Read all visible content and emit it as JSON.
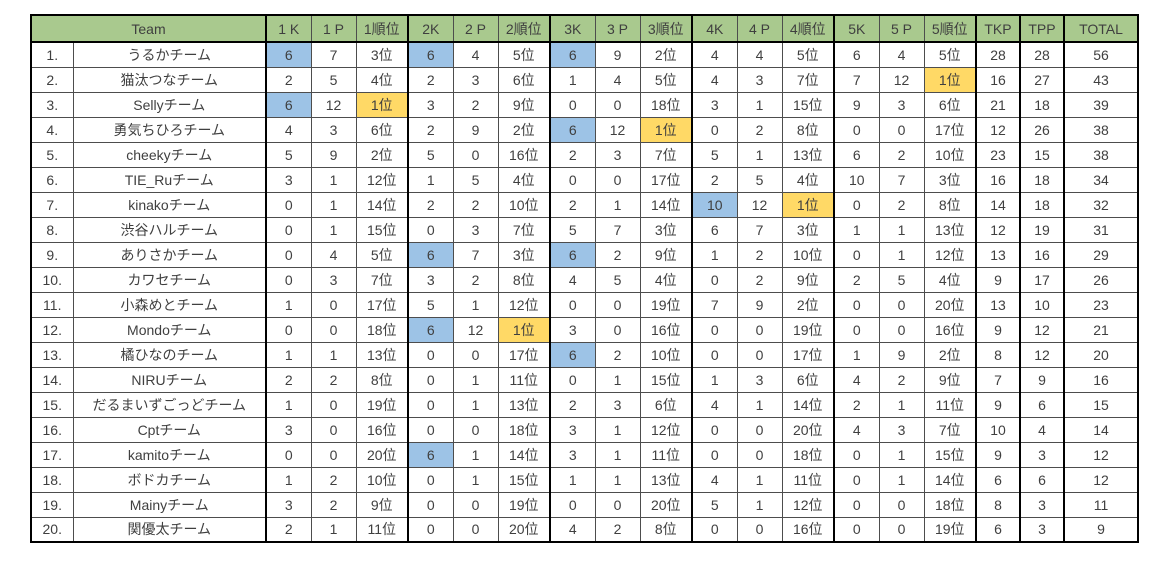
{
  "colors": {
    "header_bg": "#a9c98e",
    "kill_highlight_blue": "#9dc3e6",
    "first_place_yellow": "#ffd966"
  },
  "table": {
    "team_header": "Team",
    "stat_headers": [
      "1 K",
      "1 P",
      "1順位",
      "2K",
      "2 P",
      "2順位",
      "3K",
      "3 P",
      "3順位",
      "4K",
      "4 P",
      "4順位",
      "5K",
      "5 P",
      "5順位",
      "TKP",
      "TPP",
      "TOTAL"
    ],
    "rows": [
      {
        "rank": "1.",
        "team": "うるかチーム",
        "cells": [
          "6",
          "7",
          "3位",
          "6",
          "4",
          "5位",
          "6",
          "9",
          "2位",
          "4",
          "4",
          "5位",
          "6",
          "4",
          "5位",
          "28",
          "28",
          "56"
        ],
        "hl": {
          "0": "blue",
          "3": "blue",
          "6": "blue"
        }
      },
      {
        "rank": "2.",
        "team": "猫汰つなチーム",
        "cells": [
          "2",
          "5",
          "4位",
          "2",
          "3",
          "6位",
          "1",
          "4",
          "5位",
          "4",
          "3",
          "7位",
          "7",
          "12",
          "1位",
          "16",
          "27",
          "43"
        ],
        "hl": {
          "14": "yellow"
        }
      },
      {
        "rank": "3.",
        "team": "Sellyチーム",
        "cells": [
          "6",
          "12",
          "1位",
          "3",
          "2",
          "9位",
          "0",
          "0",
          "18位",
          "3",
          "1",
          "15位",
          "9",
          "3",
          "6位",
          "21",
          "18",
          "39"
        ],
        "hl": {
          "0": "blue",
          "2": "yellow"
        }
      },
      {
        "rank": "4.",
        "team": "勇気ちひろチーム",
        "cells": [
          "4",
          "3",
          "6位",
          "2",
          "9",
          "2位",
          "6",
          "12",
          "1位",
          "0",
          "2",
          "8位",
          "0",
          "0",
          "17位",
          "12",
          "26",
          "38"
        ],
        "hl": {
          "6": "blue",
          "8": "yellow"
        }
      },
      {
        "rank": "5.",
        "team": "cheekyチーム",
        "cells": [
          "5",
          "9",
          "2位",
          "5",
          "0",
          "16位",
          "2",
          "3",
          "7位",
          "5",
          "1",
          "13位",
          "6",
          "2",
          "10位",
          "23",
          "15",
          "38"
        ],
        "hl": {}
      },
      {
        "rank": "6.",
        "team": "TIE_Ruチーム",
        "cells": [
          "3",
          "1",
          "12位",
          "1",
          "5",
          "4位",
          "0",
          "0",
          "17位",
          "2",
          "5",
          "4位",
          "10",
          "7",
          "3位",
          "16",
          "18",
          "34"
        ],
        "hl": {}
      },
      {
        "rank": "7.",
        "team": "kinakoチーム",
        "cells": [
          "0",
          "1",
          "14位",
          "2",
          "2",
          "10位",
          "2",
          "1",
          "14位",
          "10",
          "12",
          "1位",
          "0",
          "2",
          "8位",
          "14",
          "18",
          "32"
        ],
        "hl": {
          "9": "blue",
          "11": "yellow"
        }
      },
      {
        "rank": "8.",
        "team": "渋谷ハルチーム",
        "cells": [
          "0",
          "1",
          "15位",
          "0",
          "3",
          "7位",
          "5",
          "7",
          "3位",
          "6",
          "7",
          "3位",
          "1",
          "1",
          "13位",
          "12",
          "19",
          "31"
        ],
        "hl": {}
      },
      {
        "rank": "9.",
        "team": "ありさかチーム",
        "cells": [
          "0",
          "4",
          "5位",
          "6",
          "7",
          "3位",
          "6",
          "2",
          "9位",
          "1",
          "2",
          "10位",
          "0",
          "1",
          "12位",
          "13",
          "16",
          "29"
        ],
        "hl": {
          "3": "blue",
          "6": "blue"
        }
      },
      {
        "rank": "10.",
        "team": "カワセチーム",
        "cells": [
          "0",
          "3",
          "7位",
          "3",
          "2",
          "8位",
          "4",
          "5",
          "4位",
          "0",
          "2",
          "9位",
          "2",
          "5",
          "4位",
          "9",
          "17",
          "26"
        ],
        "hl": {}
      },
      {
        "rank": "11.",
        "team": "小森めとチーム",
        "cells": [
          "1",
          "0",
          "17位",
          "5",
          "1",
          "12位",
          "0",
          "0",
          "19位",
          "7",
          "9",
          "2位",
          "0",
          "0",
          "20位",
          "13",
          "10",
          "23"
        ],
        "hl": {}
      },
      {
        "rank": "12.",
        "team": "Mondoチーム",
        "cells": [
          "0",
          "0",
          "18位",
          "6",
          "12",
          "1位",
          "3",
          "0",
          "16位",
          "0",
          "0",
          "19位",
          "0",
          "0",
          "16位",
          "9",
          "12",
          "21"
        ],
        "hl": {
          "3": "blue",
          "5": "yellow"
        }
      },
      {
        "rank": "13.",
        "team": "橘ひなのチーム",
        "cells": [
          "1",
          "1",
          "13位",
          "0",
          "0",
          "17位",
          "6",
          "2",
          "10位",
          "0",
          "0",
          "17位",
          "1",
          "9",
          "2位",
          "8",
          "12",
          "20"
        ],
        "hl": {
          "6": "blue"
        }
      },
      {
        "rank": "14.",
        "team": "NIRUチーム",
        "cells": [
          "2",
          "2",
          "8位",
          "0",
          "1",
          "11位",
          "0",
          "1",
          "15位",
          "1",
          "3",
          "6位",
          "4",
          "2",
          "9位",
          "7",
          "9",
          "16"
        ],
        "hl": {}
      },
      {
        "rank": "15.",
        "team": "だるまいずごっどチーム",
        "cells": [
          "1",
          "0",
          "19位",
          "0",
          "1",
          "13位",
          "2",
          "3",
          "6位",
          "4",
          "1",
          "14位",
          "2",
          "1",
          "11位",
          "9",
          "6",
          "15"
        ],
        "hl": {}
      },
      {
        "rank": "16.",
        "team": "Cptチーム",
        "cells": [
          "3",
          "0",
          "16位",
          "0",
          "0",
          "18位",
          "3",
          "1",
          "12位",
          "0",
          "0",
          "20位",
          "4",
          "3",
          "7位",
          "10",
          "4",
          "14"
        ],
        "hl": {}
      },
      {
        "rank": "17.",
        "team": "kamitoチーム",
        "cells": [
          "0",
          "0",
          "20位",
          "6",
          "1",
          "14位",
          "3",
          "1",
          "11位",
          "0",
          "0",
          "18位",
          "0",
          "1",
          "15位",
          "9",
          "3",
          "12"
        ],
        "hl": {
          "3": "blue"
        }
      },
      {
        "rank": "18.",
        "team": "ボドカチーム",
        "cells": [
          "1",
          "2",
          "10位",
          "0",
          "1",
          "15位",
          "1",
          "1",
          "13位",
          "4",
          "1",
          "11位",
          "0",
          "1",
          "14位",
          "6",
          "6",
          "12"
        ],
        "hl": {}
      },
      {
        "rank": "19.",
        "team": "Mainyチーム",
        "cells": [
          "3",
          "2",
          "9位",
          "0",
          "0",
          "19位",
          "0",
          "0",
          "20位",
          "5",
          "1",
          "12位",
          "0",
          "0",
          "18位",
          "8",
          "3",
          "11"
        ],
        "hl": {}
      },
      {
        "rank": "20.",
        "team": "関優太チーム",
        "cells": [
          "2",
          "1",
          "11位",
          "0",
          "0",
          "20位",
          "4",
          "2",
          "8位",
          "0",
          "0",
          "16位",
          "0",
          "0",
          "19位",
          "6",
          "3",
          "9"
        ],
        "hl": {}
      }
    ]
  }
}
